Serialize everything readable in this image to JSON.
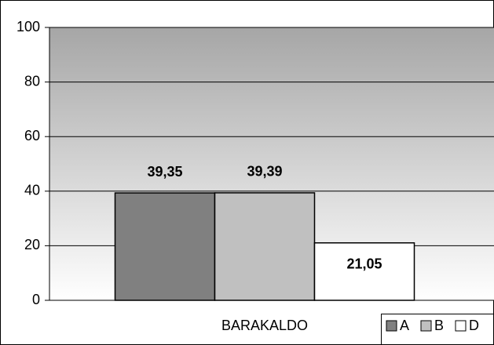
{
  "chart_data": {
    "type": "bar",
    "categories": [
      "BARAKALDO"
    ],
    "series": [
      {
        "name": "A",
        "color": "#808080",
        "values": [
          39.35
        ],
        "value_labels": [
          "39,35"
        ]
      },
      {
        "name": "B",
        "color": "#c0c0c0",
        "values": [
          39.39
        ],
        "value_labels": [
          "39,39"
        ]
      },
      {
        "name": "D",
        "color": "#ffffff",
        "values": [
          21.05
        ],
        "value_labels": [
          "21,05"
        ]
      }
    ],
    "ylim": [
      0,
      100
    ],
    "yticks": [
      0,
      20,
      40,
      60,
      80,
      100
    ],
    "grid": true,
    "legend": "bottom-right"
  }
}
